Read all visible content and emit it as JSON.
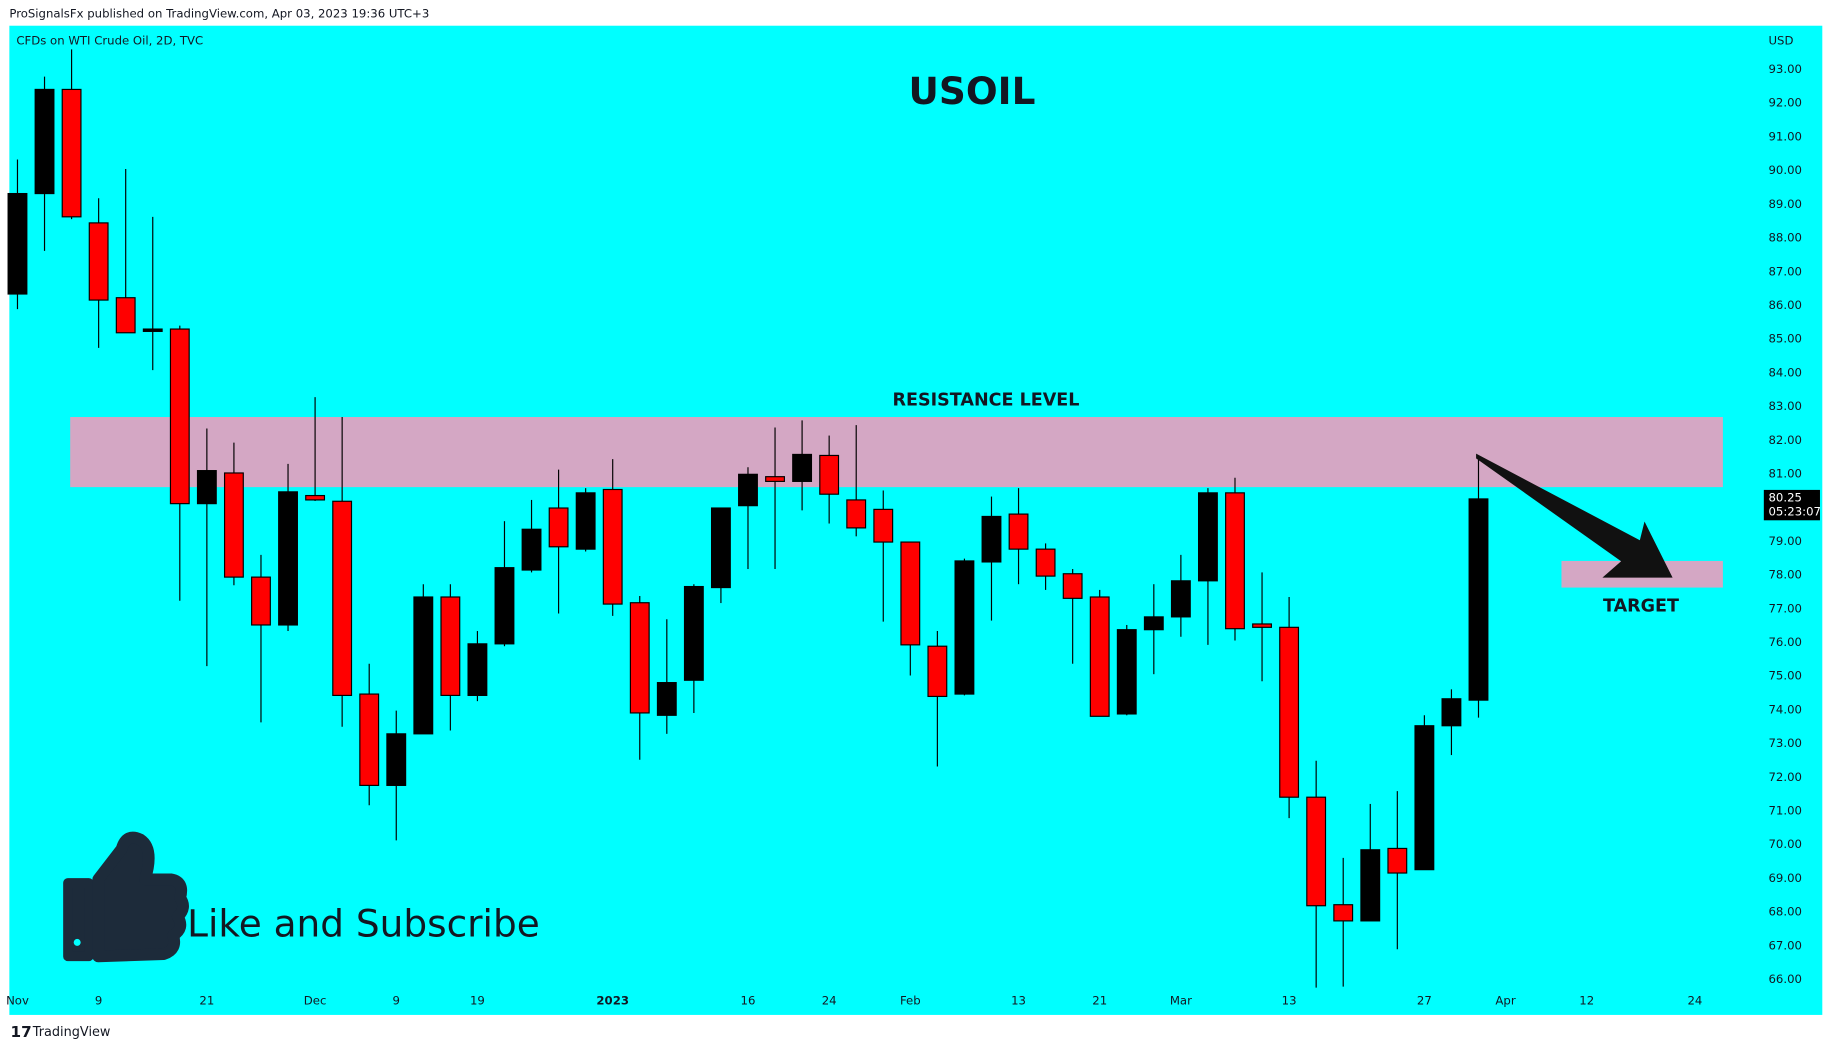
{
  "header": {
    "publisher": "ProSignalsFx published on TradingView.com, Apr 03, 2023 19:36 UTC+3"
  },
  "footer": {
    "brand": "TradingView"
  },
  "chart_data": {
    "type": "candlestick",
    "title": "USOIL",
    "subtitle": "CFDs on WTI Crude Oil, 2D, TVC",
    "y_axis_label": "USD",
    "annotation": "Like and Subscribe",
    "background": "#00ffff",
    "up_color": "#000000",
    "down_color": "#ff0000",
    "zone_color": "#d4a7c4",
    "open": [
      86.34,
      89.32,
      92.41,
      88.45,
      86.23,
      85.28,
      85.3,
      80.12,
      81.03,
      77.94,
      76.52,
      80.36,
      80.19,
      74.47,
      71.76,
      73.29,
      77.35,
      74.43,
      75.96,
      78.15,
      79.99,
      78.77,
      80.54,
      77.18,
      73.84,
      74.88,
      77.63,
      80.06,
      80.92,
      80.78,
      81.55,
      80.23,
      79.95,
      78.98,
      75.89,
      74.47,
      78.39,
      79.81,
      78.77,
      78.04,
      77.35,
      73.88,
      76.38,
      76.76,
      77.83,
      80.44,
      76.55,
      76.45,
      71.41,
      68.22,
      67.74,
      69.89,
      69.26,
      73.53,
      74.29
    ],
    "high": [
      90.33,
      92.79,
      93.6,
      89.18,
      90.05,
      88.63,
      85.4,
      82.35,
      81.93,
      78.6,
      81.3,
      83.28,
      82.69,
      75.37,
      73.98,
      77.73,
      77.73,
      76.34,
      79.6,
      80.23,
      81.13,
      80.58,
      81.44,
      77.38,
      76.69,
      77.73,
      79.99,
      81.2,
      82.38,
      82.59,
      82.14,
      82.45,
      80.51,
      78.98,
      76.34,
      78.49,
      80.33,
      80.58,
      78.94,
      78.18,
      77.56,
      76.52,
      77.73,
      78.6,
      80.58,
      80.89,
      78.08,
      77.35,
      72.49,
      69.61,
      71.21,
      71.59,
      73.84,
      74.61,
      81.55
    ],
    "low": [
      85.89,
      87.62,
      88.56,
      84.74,
      85.19,
      84.08,
      77.24,
      75.3,
      77.7,
      73.63,
      76.34,
      80.2,
      73.5,
      71.17,
      70.13,
      73.29,
      73.39,
      74.26,
      75.89,
      78.08,
      76.86,
      78.7,
      76.79,
      72.52,
      73.29,
      73.91,
      77.17,
      78.18,
      78.18,
      79.92,
      79.53,
      79.15,
      76.62,
      75.02,
      72.32,
      74.43,
      76.65,
      77.73,
      77.56,
      75.37,
      73.81,
      73.84,
      75.06,
      76.17,
      75.93,
      76.06,
      74.85,
      70.79,
      65.76,
      65.79,
      67.74,
      66.9,
      69.26,
      72.66,
      73.77
    ],
    "close": [
      89.32,
      92.41,
      88.63,
      86.16,
      85.19,
      85.3,
      80.12,
      81.1,
      77.94,
      76.52,
      80.47,
      80.23,
      74.43,
      71.76,
      73.29,
      77.35,
      74.43,
      75.96,
      78.22,
      79.36,
      78.84,
      80.44,
      77.14,
      73.91,
      74.81,
      77.66,
      79.99,
      80.99,
      80.78,
      81.58,
      80.4,
      79.4,
      78.98,
      75.93,
      74.4,
      78.42,
      79.74,
      78.77,
      77.97,
      77.31,
      73.81,
      76.38,
      76.76,
      77.83,
      80.44,
      76.41,
      76.45,
      71.41,
      68.19,
      67.74,
      69.85,
      69.16,
      73.53,
      74.33,
      80.26
    ],
    "xlim": [
      -0.3,
      64.2
    ],
    "xticks": [
      {
        "value": 0,
        "label": "Nov"
      },
      {
        "value": 3,
        "label": "9"
      },
      {
        "value": 7,
        "label": "21"
      },
      {
        "value": 11,
        "label": "Dec"
      },
      {
        "value": 14,
        "label": "9"
      },
      {
        "value": 17,
        "label": "19"
      },
      {
        "value": 22,
        "label": "2023"
      },
      {
        "value": 27,
        "label": "16"
      },
      {
        "value": 30,
        "label": "24"
      },
      {
        "value": 33,
        "label": "Feb"
      },
      {
        "value": 37,
        "label": "13"
      },
      {
        "value": 40,
        "label": "21"
      },
      {
        "value": 43,
        "label": "Mar"
      },
      {
        "value": 47,
        "label": "13"
      },
      {
        "value": 52,
        "label": "27"
      },
      {
        "value": 55,
        "label": "Apr"
      },
      {
        "value": 58,
        "label": "12"
      },
      {
        "value": 62,
        "label": "24"
      }
    ],
    "ylim": [
      64.95,
      94.3
    ],
    "yticks": [
      {
        "value": 66,
        "label": "66.00"
      },
      {
        "value": 67,
        "label": "67.00"
      },
      {
        "value": 68,
        "label": "68.00"
      },
      {
        "value": 69,
        "label": "69.00"
      },
      {
        "value": 70,
        "label": "70.00"
      },
      {
        "value": 71,
        "label": "71.00"
      },
      {
        "value": 72,
        "label": "72.00"
      },
      {
        "value": 73,
        "label": "73.00"
      },
      {
        "value": 74,
        "label": "74.00"
      },
      {
        "value": 75,
        "label": "75.00"
      },
      {
        "value": 76,
        "label": "76.00"
      },
      {
        "value": 77,
        "label": "77.00"
      },
      {
        "value": 78,
        "label": "78.00"
      },
      {
        "value": 79,
        "label": "79.00"
      },
      {
        "value": 80,
        "label": "80.00"
      },
      {
        "value": 81,
        "label": "81.00"
      },
      {
        "value": 82,
        "label": "82.00"
      },
      {
        "value": 83,
        "label": "83.00"
      },
      {
        "value": 84,
        "label": "84.00"
      },
      {
        "value": 85,
        "label": "85.00"
      },
      {
        "value": 86,
        "label": "86.00"
      },
      {
        "value": 87,
        "label": "87.00"
      },
      {
        "value": 88,
        "label": "88.00"
      },
      {
        "value": 89,
        "label": "89.00"
      },
      {
        "value": 90,
        "label": "90.00"
      },
      {
        "value": 91,
        "label": "91.00"
      },
      {
        "value": 92,
        "label": "92.00"
      },
      {
        "value": 93,
        "label": "93.00"
      }
    ],
    "last_price": {
      "value": 80.25,
      "label": "80.25"
    },
    "countdown": "05:23:07",
    "zones": [
      {
        "label": "RESISTANCE LEVEL",
        "from": 80.61,
        "to": 82.69
      },
      {
        "label": "TARGET",
        "from": 77.63,
        "to": 78.42
      }
    ]
  }
}
